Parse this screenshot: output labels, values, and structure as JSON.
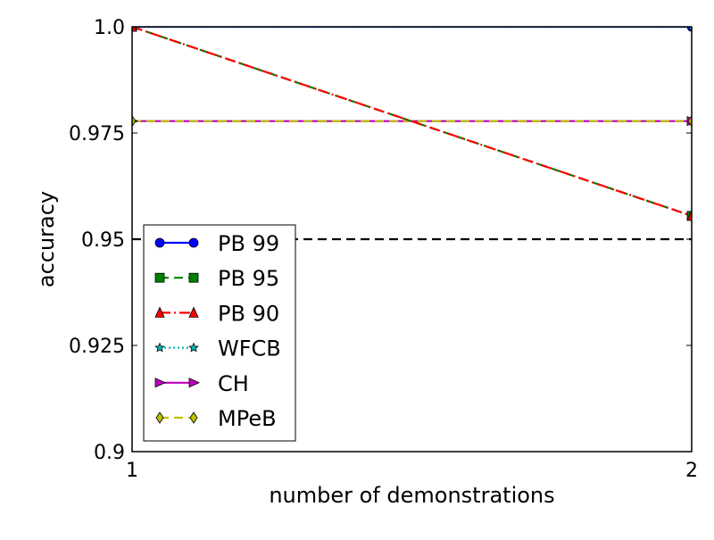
{
  "chart_data": {
    "type": "line",
    "title": "",
    "xlabel": "number of demonstrations",
    "ylabel": "accuracy",
    "xlim": [
      1,
      2
    ],
    "ylim": [
      0.9,
      1.0
    ],
    "x_ticks": [
      {
        "value": 1,
        "label": "1"
      },
      {
        "value": 2,
        "label": "2"
      }
    ],
    "y_ticks": [
      {
        "value": 0.9,
        "label": "0.9"
      },
      {
        "value": 0.925,
        "label": "0.925"
      },
      {
        "value": 0.95,
        "label": "0.95"
      },
      {
        "value": 0.975,
        "label": "0.975"
      },
      {
        "value": 1.0,
        "label": "1.0"
      }
    ],
    "grid": false,
    "legend_position": "lower-left",
    "reference_line": {
      "y": 0.95,
      "color": "#000000",
      "style": "dashed"
    },
    "series": [
      {
        "name": "PB 99",
        "x": [
          1,
          2
        ],
        "y": [
          1.0,
          1.0
        ],
        "color": "#0000ff",
        "dash": "solid",
        "marker": "circle"
      },
      {
        "name": "PB 95",
        "x": [
          1,
          2
        ],
        "y": [
          1.0,
          0.9555
        ],
        "color": "#008000",
        "dash": "dashed",
        "marker": "square"
      },
      {
        "name": "PB 90",
        "x": [
          1,
          2
        ],
        "y": [
          1.0,
          0.9555
        ],
        "color": "#ff0000",
        "dash": "dashdot",
        "marker": "triangle"
      },
      {
        "name": "WFCB",
        "x": [
          1,
          2
        ],
        "y": [
          1.0,
          1.0
        ],
        "color": "#00bfbf",
        "dash": "dotted",
        "marker": "star"
      },
      {
        "name": "CH",
        "x": [
          1,
          2
        ],
        "y": [
          0.9778,
          0.9778
        ],
        "color": "#bf00bf",
        "dash": "solid",
        "marker": "triangle-right"
      },
      {
        "name": "MPeB",
        "x": [
          1,
          2
        ],
        "y": [
          0.9778,
          0.9778
        ],
        "color": "#bfbf00",
        "dash": "dashed",
        "marker": "diamond"
      }
    ]
  }
}
